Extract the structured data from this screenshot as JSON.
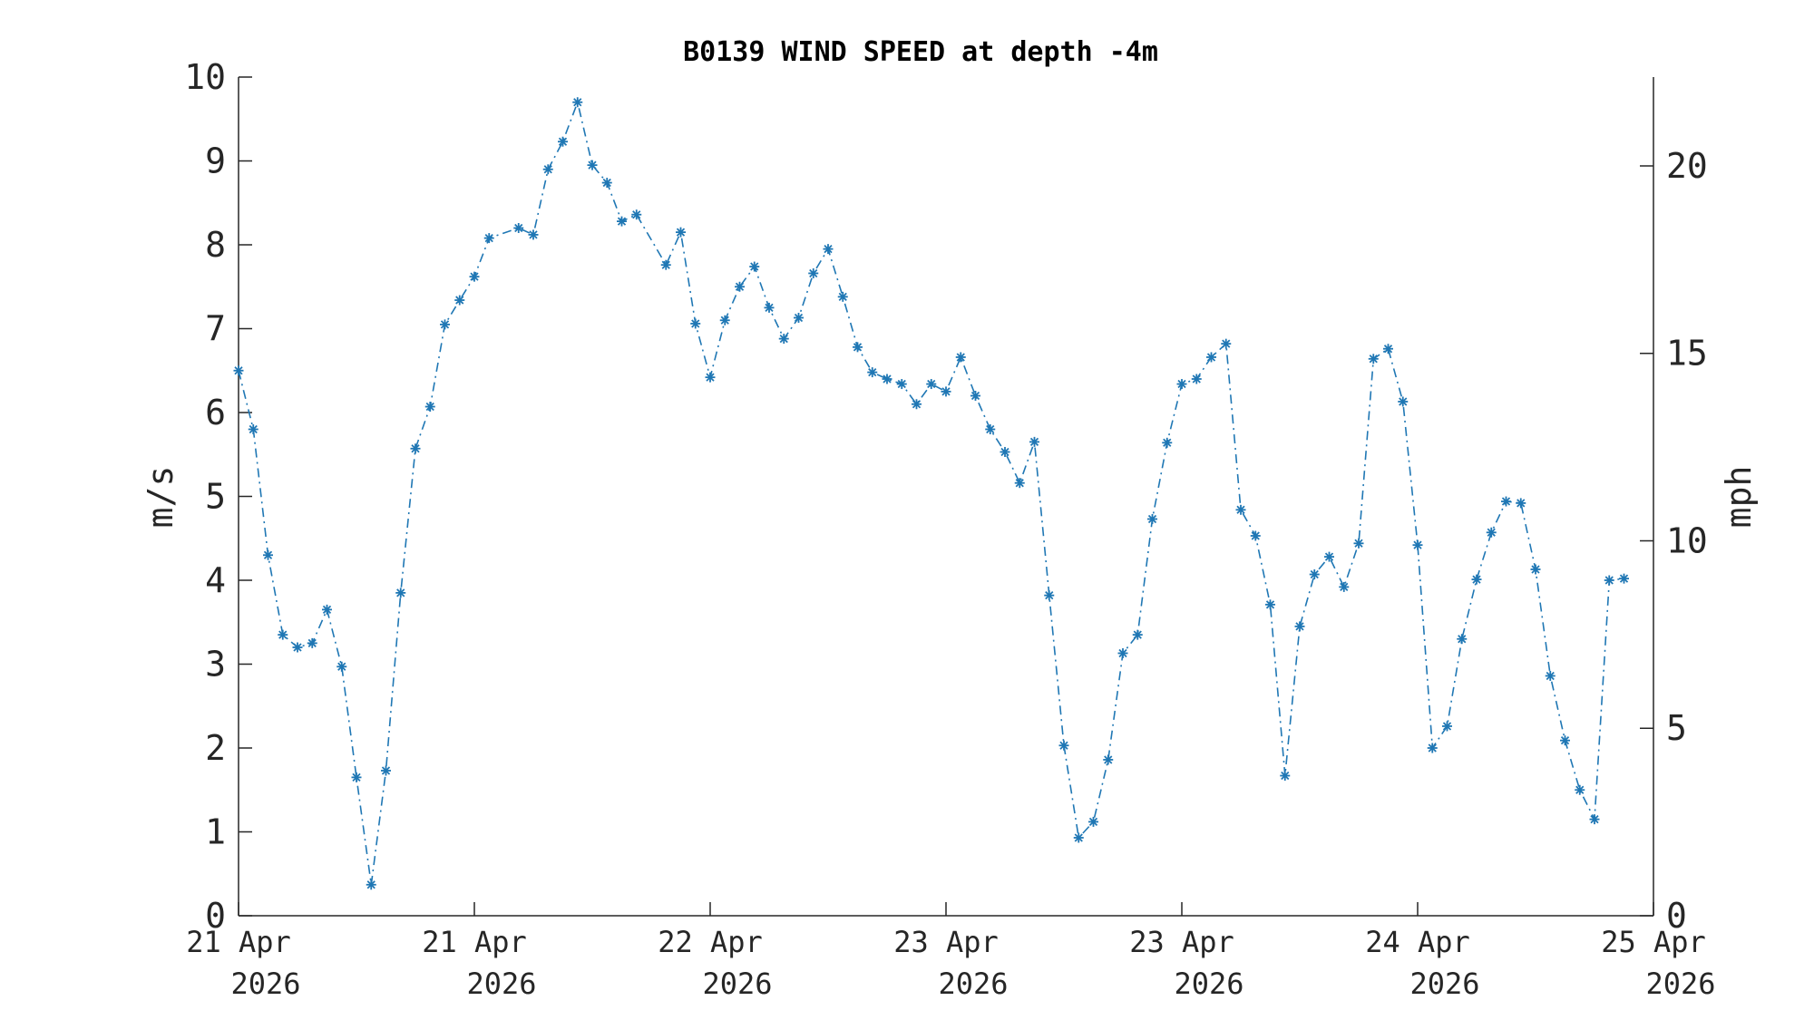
{
  "chart_data": {
    "type": "line",
    "title": "B0139 WIND SPEED at depth -4m",
    "ylabel": "m/s",
    "ylabel_right": "mph",
    "ylim": [
      0,
      10
    ],
    "y_right_lim": [
      0,
      22.37
    ],
    "yticks": [
      0,
      1,
      2,
      3,
      4,
      5,
      6,
      7,
      8,
      9,
      10
    ],
    "y_right_ticks": [
      0,
      5,
      10,
      15,
      20
    ],
    "xlim": [
      0,
      6
    ],
    "xticks": [
      {
        "line1": "21 Apr",
        "line2": "2026"
      },
      {
        "line1": "21 Apr",
        "line2": "2026"
      },
      {
        "line1": "22 Apr",
        "line2": "2026"
      },
      {
        "line1": "23 Apr",
        "line2": "2026"
      },
      {
        "line1": "23 Apr",
        "line2": "2026"
      },
      {
        "line1": "24 Apr",
        "line2": "2026"
      },
      {
        "line1": "25 Apr",
        "line2": "2026"
      }
    ],
    "grid": false,
    "color": "#1f77b4",
    "marker": "asterisk",
    "line_style": "dash-dot",
    "series": [
      {
        "x": [
          0,
          0.0625,
          0.125,
          0.1875,
          0.25,
          0.3125,
          0.375,
          0.4375,
          0.5,
          0.5625,
          0.625,
          0.6875,
          0.75,
          0.8125,
          0.875,
          0.9375,
          1.0,
          1.0625,
          1.125,
          1.1875,
          1.25,
          1.3125,
          1.375,
          1.4375,
          1.5,
          1.5625,
          1.625,
          1.6875,
          1.75,
          1.8125,
          1.875,
          1.9375,
          2.0,
          2.0625,
          2.125,
          2.1875,
          2.25,
          2.3125,
          2.375,
          2.4375,
          2.5,
          2.5625,
          2.625,
          2.6875,
          2.75,
          2.8125,
          2.875,
          2.9375,
          3.0,
          3.0625,
          3.125,
          3.1875,
          3.25,
          3.3125,
          3.375,
          3.4375,
          3.5,
          3.5625,
          3.625,
          3.6875,
          3.75,
          3.8125,
          3.875,
          3.9375,
          4.0,
          4.0625,
          4.125,
          4.1875,
          4.25,
          4.3125,
          4.375,
          4.4375,
          4.5,
          4.5625,
          4.625,
          4.6875,
          4.75,
          4.8125,
          4.875,
          4.9375,
          5.0,
          5.0625,
          5.125,
          5.1875,
          5.25,
          5.3125,
          5.375,
          5.4375,
          5.5,
          5.5625,
          5.625,
          5.6875,
          5.75,
          5.8125,
          5.875,
          5.9375,
          6.0
        ],
        "values": [
          6.5,
          5.8,
          4.3,
          3.35,
          3.2,
          3.25,
          3.65,
          2.97,
          1.65,
          0.37,
          1.73,
          3.85,
          5.57,
          6.07,
          7.05,
          7.34,
          7.62,
          8.08,
          null,
          8.2,
          8.12,
          8.9,
          9.23,
          9.7,
          8.95,
          8.74,
          8.28,
          8.36,
          null,
          7.76,
          8.15,
          7.06,
          6.42,
          7.1,
          7.5,
          7.74,
          7.25,
          6.88,
          7.13,
          7.66,
          7.95,
          7.38,
          6.78,
          6.48,
          6.4,
          6.34,
          6.1,
          6.34,
          6.25,
          6.66,
          6.2,
          5.8,
          5.53,
          5.16,
          5.65,
          3.82,
          2.03,
          0.93,
          1.12,
          1.86,
          3.13,
          3.35,
          4.73,
          5.64,
          6.34,
          6.4,
          6.66,
          6.82,
          4.84,
          4.53,
          3.71,
          1.67,
          3.45,
          4.07,
          4.28,
          3.92,
          4.44,
          6.64,
          6.76,
          6.13,
          4.42,
          2.0,
          2.26,
          3.3,
          4.01,
          4.57,
          4.94,
          4.92,
          4.13,
          2.86,
          2.09,
          1.5,
          1.15,
          4.0,
          4.02,
          null,
          null
        ]
      }
    ]
  }
}
